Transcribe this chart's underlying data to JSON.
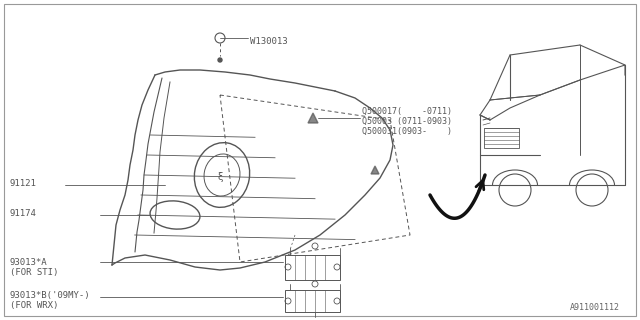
{
  "bg_color": "#ffffff",
  "line_color": "#555555",
  "text_color": "#555555",
  "border_color": "#999999",
  "footer_id": "A911001112",
  "label_W130013": "W130013",
  "label_Q1": "Q500017(    -0711)",
  "label_Q2": "Q50003 (0711-0903)",
  "label_Q3": "Q500031(0903-    )",
  "label_91121": "91121",
  "label_91174": "91174",
  "label_93013A_1": "93013*A",
  "label_93013A_2": "(FOR STI)",
  "label_93013B_1": "93013*B('09MY-)",
  "label_93013B_2": "(FOR WRX)"
}
